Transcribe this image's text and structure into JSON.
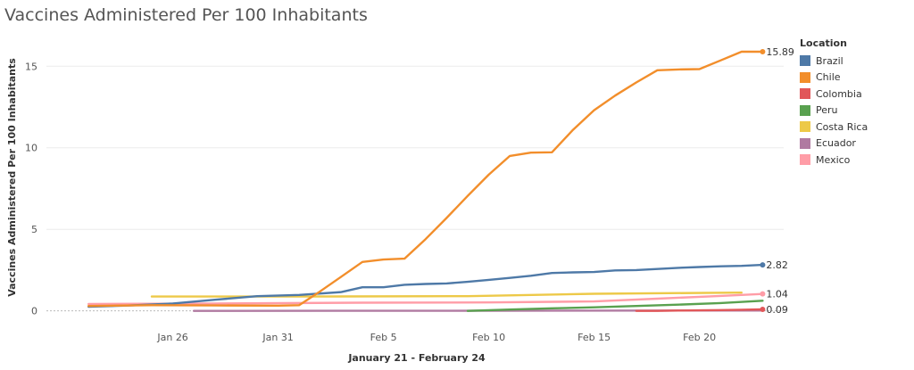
{
  "title": "Vaccines Administered Per 100 Inhabitants",
  "chart_data": {
    "type": "line",
    "title": "Vaccines Administered Per 100 Inhabitants",
    "ylabel": "Vaccines Administered Per 100 Inhabitants",
    "xlabel": "January 21 - February 24",
    "ylim": [
      -0.4,
      17.2
    ],
    "xlim": [
      "2021-01-20",
      "2021-02-24"
    ],
    "yticks": [
      0,
      5,
      10,
      15
    ],
    "xticks": [
      {
        "date": "2021-01-26",
        "label": "Jan 26"
      },
      {
        "date": "2021-01-31",
        "label": "Jan 31"
      },
      {
        "date": "2021-02-05",
        "label": "Feb 5"
      },
      {
        "date": "2021-02-10",
        "label": "Feb 10"
      },
      {
        "date": "2021-02-15",
        "label": "Feb 15"
      },
      {
        "date": "2021-02-20",
        "label": "Feb 20"
      }
    ],
    "grid": true,
    "legend_title": "Location",
    "legend_position": "right",
    "series": [
      {
        "name": "Brazil",
        "color": "#4e79a7",
        "end_label": "2.82",
        "x": [
          "2021-01-22",
          "2021-01-24",
          "2021-01-26",
          "2021-01-28",
          "2021-01-30",
          "2021-02-01",
          "2021-02-03",
          "2021-02-04",
          "2021-02-05",
          "2021-02-06",
          "2021-02-07",
          "2021-02-08",
          "2021-02-09",
          "2021-02-10",
          "2021-02-11",
          "2021-02-12",
          "2021-02-13",
          "2021-02-14",
          "2021-02-15",
          "2021-02-16",
          "2021-02-17",
          "2021-02-18",
          "2021-02-19",
          "2021-02-20",
          "2021-02-21",
          "2021-02-22",
          "2021-02-23"
        ],
        "y": [
          0.25,
          0.33,
          0.45,
          0.68,
          0.9,
          0.98,
          1.15,
          1.45,
          1.45,
          1.6,
          1.65,
          1.68,
          1.78,
          1.9,
          2.02,
          2.15,
          2.32,
          2.36,
          2.38,
          2.48,
          2.5,
          2.57,
          2.64,
          2.69,
          2.73,
          2.76,
          2.82
        ]
      },
      {
        "name": "Chile",
        "color": "#f28e2b",
        "end_label": "15.89",
        "x": [
          "2021-01-22",
          "2021-01-25",
          "2021-01-28",
          "2021-01-31",
          "2021-02-01",
          "2021-02-02",
          "2021-02-03",
          "2021-02-04",
          "2021-02-05",
          "2021-02-06",
          "2021-02-07",
          "2021-02-08",
          "2021-02-09",
          "2021-02-10",
          "2021-02-11",
          "2021-02-12",
          "2021-02-13",
          "2021-02-14",
          "2021-02-15",
          "2021-02-16",
          "2021-02-17",
          "2021-02-18",
          "2021-02-19",
          "2021-02-20",
          "2021-02-21",
          "2021-02-22",
          "2021-02-23"
        ],
        "y": [
          0.3,
          0.35,
          0.33,
          0.32,
          0.35,
          1.2,
          2.1,
          3.0,
          3.15,
          3.2,
          4.4,
          5.7,
          7.05,
          8.35,
          9.5,
          9.7,
          9.72,
          11.1,
          12.3,
          13.2,
          14.0,
          14.75,
          14.8,
          14.82,
          15.35,
          15.89,
          15.89
        ]
      },
      {
        "name": "Colombia",
        "color": "#e15759",
        "end_label": "0.09",
        "x": [
          "2021-02-17",
          "2021-02-18",
          "2021-02-19",
          "2021-02-20",
          "2021-02-21",
          "2021-02-22",
          "2021-02-23"
        ],
        "y": [
          0.0,
          0.0,
          0.02,
          0.03,
          0.05,
          0.07,
          0.09
        ]
      },
      {
        "name": "Peru",
        "color": "#59a14f",
        "x": [
          "2021-02-09",
          "2021-02-11",
          "2021-02-13",
          "2021-02-15",
          "2021-02-17",
          "2021-02-19",
          "2021-02-21",
          "2021-02-23"
        ],
        "y": [
          0.0,
          0.08,
          0.16,
          0.22,
          0.3,
          0.38,
          0.48,
          0.62
        ]
      },
      {
        "name": "Costa Rica",
        "color": "#edc948",
        "x": [
          "2021-01-25",
          "2021-02-01",
          "2021-02-09",
          "2021-02-15",
          "2021-02-22"
        ],
        "y": [
          0.88,
          0.88,
          0.9,
          1.05,
          1.12
        ]
      },
      {
        "name": "Ecuador",
        "color": "#b07aa1",
        "x": [
          "2021-01-27",
          "2021-02-10",
          "2021-02-23"
        ],
        "y": [
          0.0,
          0.01,
          0.02
        ]
      },
      {
        "name": "Mexico",
        "color": "#ff9da7",
        "end_label": "1.04",
        "x": [
          "2021-01-22",
          "2021-01-28",
          "2021-02-04",
          "2021-02-10",
          "2021-02-15",
          "2021-02-18",
          "2021-02-21",
          "2021-02-23"
        ],
        "y": [
          0.42,
          0.45,
          0.5,
          0.52,
          0.58,
          0.75,
          0.92,
          1.04
        ]
      }
    ]
  }
}
